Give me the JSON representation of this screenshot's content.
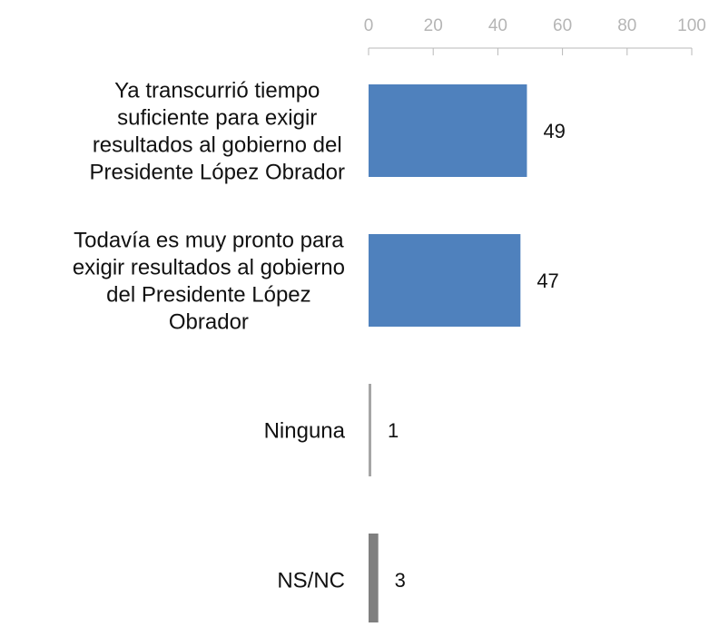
{
  "chart_data": {
    "type": "bar",
    "orientation": "horizontal",
    "xlim": [
      0,
      100
    ],
    "ticks": [
      "0",
      "20",
      "40",
      "60",
      "80",
      "100"
    ],
    "tick_values": [
      0,
      20,
      40,
      60,
      80,
      100
    ],
    "axis_position": "top",
    "grid": false,
    "categories": [
      [
        "Ya transcurrió tiempo",
        "suficiente para exigir",
        "resultados al gobierno del",
        "Presidente López Obrador"
      ],
      [
        "Todavía es muy pronto para",
        "exigir resultados al gobierno",
        "del Presidente  López",
        "Obrador"
      ],
      [
        "Ninguna"
      ],
      [
        "NS/NC"
      ]
    ],
    "values": [
      49,
      47,
      1,
      3
    ],
    "value_labels": [
      "49",
      "47",
      "1",
      "3"
    ],
    "colors": [
      "#4f81bd",
      "#4f81bd",
      "#a6a6a6",
      "#7f7f7f"
    ]
  }
}
